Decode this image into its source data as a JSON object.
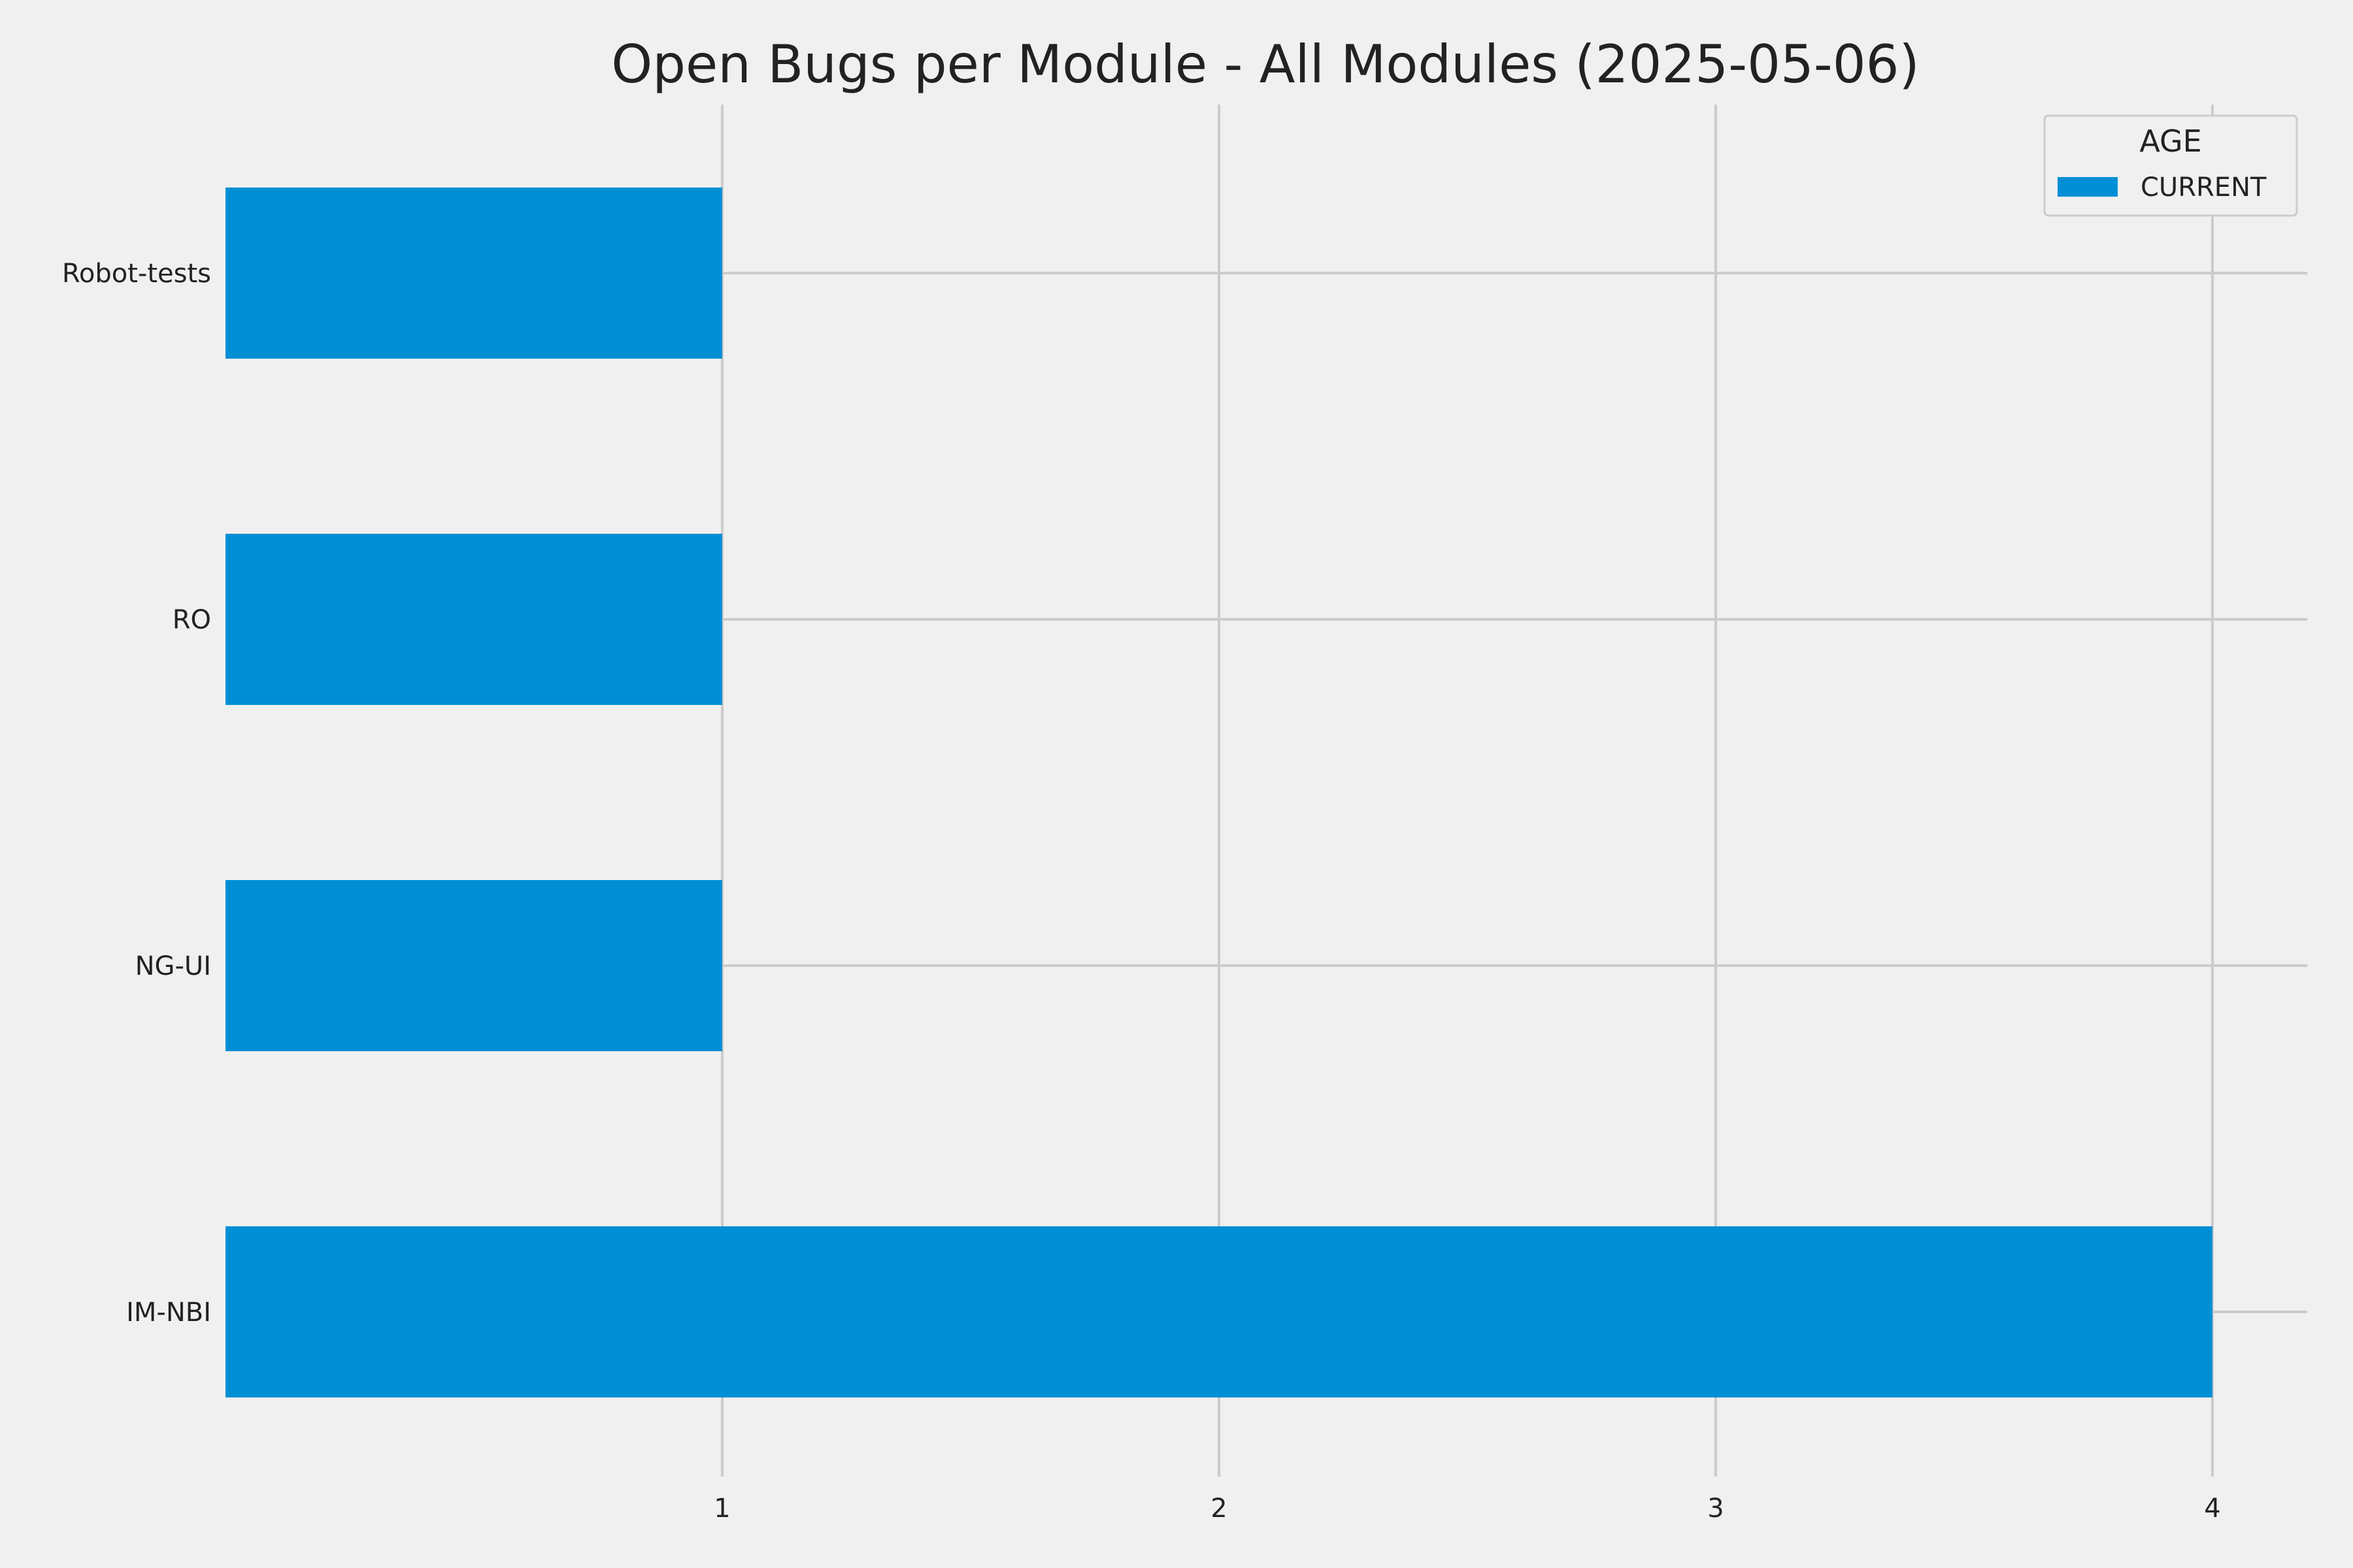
{
  "chart_data": {
    "type": "bar",
    "orientation": "horizontal",
    "title": "Open Bugs per Module - All Modules (2025-05-06)",
    "xlabel": "",
    "ylabel": "",
    "categories": [
      "IM-NBI",
      "NG-UI",
      "RO",
      "Robot-tests"
    ],
    "x_ticks": [
      1,
      2,
      3,
      4
    ],
    "xlim": [
      0,
      4.2
    ],
    "grid": true,
    "legend": {
      "title": "AGE",
      "placement": "top-right",
      "entries": [
        "CURRENT"
      ]
    },
    "series": [
      {
        "name": "CURRENT",
        "color": "#008fd5",
        "values": [
          4,
          1,
          1,
          1
        ]
      }
    ]
  }
}
